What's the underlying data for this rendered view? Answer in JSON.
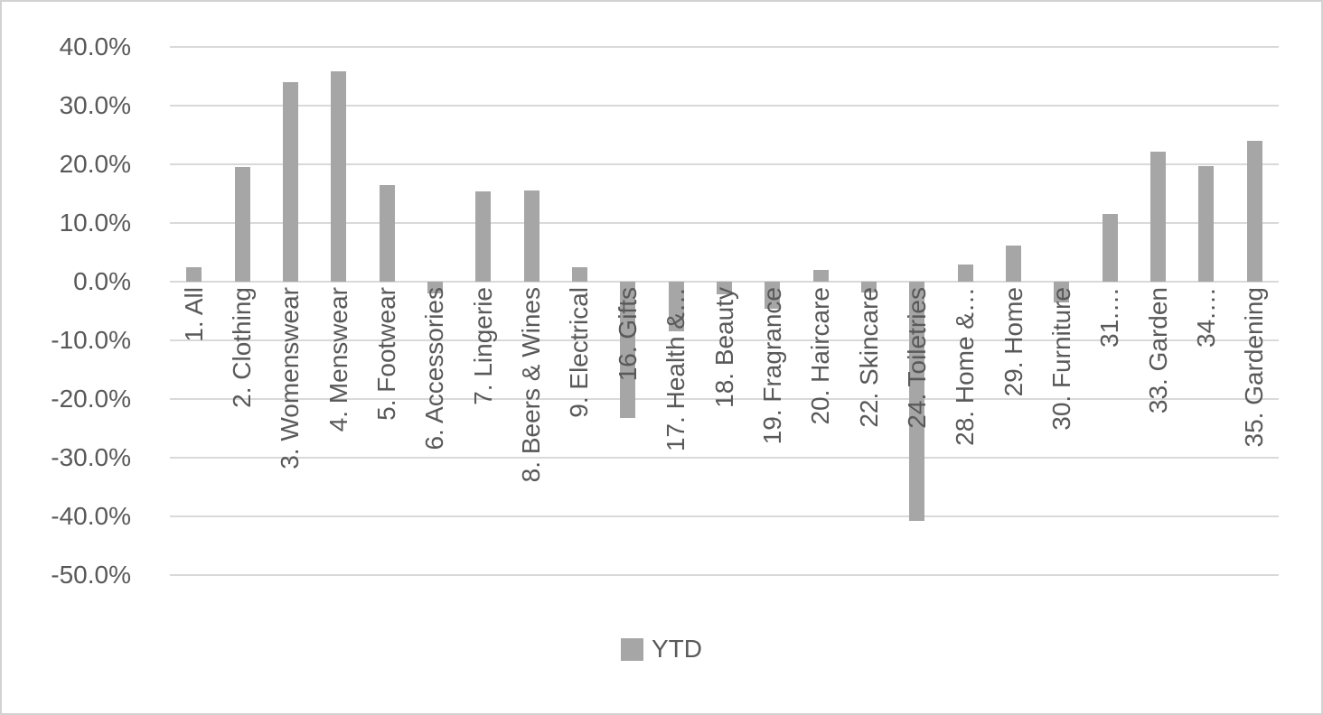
{
  "chart": {
    "legend_label": "YTD",
    "colors": {
      "bar": "#a6a6a6",
      "grid": "#d9d9d9",
      "text": "#595959",
      "frame_border": "#d2d2d2",
      "background": "#ffffff"
    }
  },
  "chart_data": {
    "type": "bar",
    "title": "",
    "xlabel": "",
    "ylabel": "",
    "grid": true,
    "legend_position": "bottom",
    "ylim": [
      -50,
      40
    ],
    "ytick_step": 10,
    "yticks": [
      {
        "value": 40,
        "label": "40.0%"
      },
      {
        "value": 30,
        "label": "30.0%"
      },
      {
        "value": 20,
        "label": "20.0%"
      },
      {
        "value": 10,
        "label": "10.0%"
      },
      {
        "value": 0,
        "label": "0.0%"
      },
      {
        "value": -10,
        "label": "-10.0%"
      },
      {
        "value": -20,
        "label": "-20.0%"
      },
      {
        "value": -30,
        "label": "-30.0%"
      },
      {
        "value": -40,
        "label": "-40.0%"
      },
      {
        "value": -50,
        "label": "-50.0%"
      }
    ],
    "categories": [
      "1. All",
      "2. Clothing",
      "3. Womenswear",
      "4. Menswear",
      "5. Footwear",
      "6. Accessories",
      "7. Lingerie",
      "8. Beers & Wines",
      "9. Electrical",
      "16. Gifts",
      "17. Health &…",
      "18. Beauty",
      "19. Fragrance",
      "20. Haircare",
      "22. Skincare",
      "24. Toiletries",
      "28. Home &…",
      "29. Home",
      "30. Furniture",
      "31.…",
      "33. Garden",
      "34.…",
      "35. Gardening"
    ],
    "series": [
      {
        "name": "YTD",
        "values": [
          2.5,
          19.6,
          34.0,
          35.8,
          16.4,
          -2.0,
          15.4,
          15.5,
          2.5,
          -23.2,
          -8.5,
          -2.2,
          -4.6,
          2.0,
          -1.9,
          -40.8,
          3.0,
          6.2,
          -3.6,
          11.5,
          22.2,
          19.7,
          24.0
        ]
      }
    ]
  }
}
